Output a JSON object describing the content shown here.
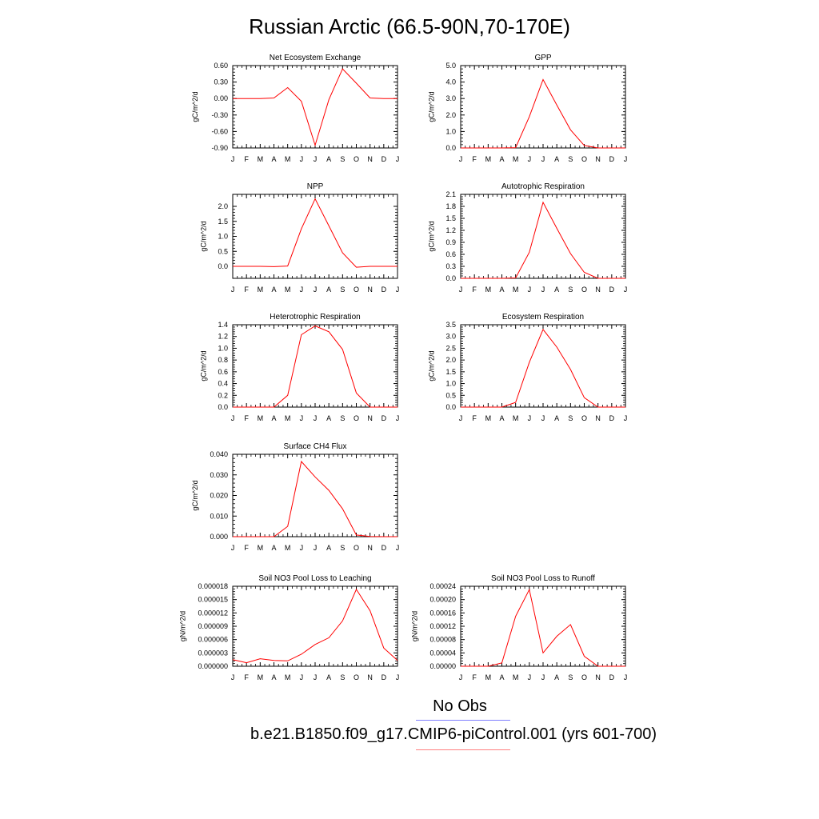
{
  "figure": {
    "title": "Russian Arctic (66.5-90N,70-170E)",
    "legend": {
      "obs_label": "No Obs",
      "obs_color": "#7f7fff",
      "case_label": "b.e21.B1850.f09_g17.CMIP6-piControl.001 (yrs 601-700)",
      "case_color": "#ff7f7f"
    },
    "line_color": "#ff0000"
  },
  "chart_data": [
    {
      "type": "line",
      "title": "Net Ecosystem Exchange",
      "ylabel": "gC/m^2/d",
      "x": [
        "J",
        "F",
        "M",
        "A",
        "M",
        "J",
        "J",
        "A",
        "S",
        "O",
        "N",
        "D",
        "J"
      ],
      "ylim": [
        -0.9,
        0.6
      ],
      "yticks": [
        "0.60",
        "0.30",
        "0.00",
        "-0.30",
        "-0.60",
        "-0.90"
      ],
      "yticks_values": [
        0.6,
        0.3,
        0.0,
        -0.3,
        -0.6,
        -0.9
      ],
      "values": [
        0.0,
        0.0,
        0.0,
        0.01,
        0.2,
        -0.05,
        -0.85,
        -0.02,
        0.54,
        0.28,
        0.01,
        0.0,
        0.0
      ]
    },
    {
      "type": "line",
      "title": "GPP",
      "ylabel": "gC/m^2/d",
      "x": [
        "J",
        "F",
        "M",
        "A",
        "M",
        "J",
        "J",
        "A",
        "S",
        "O",
        "N",
        "D",
        "J"
      ],
      "ylim": [
        0.0,
        5.0
      ],
      "yticks": [
        "5.0",
        "4.0",
        "3.0",
        "2.0",
        "1.0",
        "0.0"
      ],
      "yticks_values": [
        5,
        4,
        3,
        2,
        1,
        0
      ],
      "values": [
        0.0,
        0.0,
        0.0,
        0.0,
        0.02,
        1.9,
        4.15,
        2.6,
        1.1,
        0.15,
        0.0,
        0.0,
        0.0
      ]
    },
    {
      "type": "line",
      "title": "NPP",
      "ylabel": "gC/m^2/d",
      "x": [
        "J",
        "F",
        "M",
        "A",
        "M",
        "J",
        "J",
        "A",
        "S",
        "O",
        "N",
        "D",
        "J"
      ],
      "ylim": [
        -0.4,
        2.4
      ],
      "yticks": [
        "2.0",
        "1.5",
        "1.0",
        "0.5",
        "0.0"
      ],
      "yticks_values": [
        2.0,
        1.5,
        1.0,
        0.5,
        0.0
      ],
      "values": [
        0.0,
        0.0,
        0.0,
        -0.01,
        0.01,
        1.25,
        2.25,
        1.35,
        0.45,
        -0.03,
        0.0,
        0.0,
        0.0
      ]
    },
    {
      "type": "line",
      "title": "Autotrophic Respiration",
      "ylabel": "gC/m^2/d",
      "x": [
        "J",
        "F",
        "M",
        "A",
        "M",
        "J",
        "J",
        "A",
        "S",
        "O",
        "N",
        "D",
        "J"
      ],
      "ylim": [
        0.0,
        2.1
      ],
      "yticks": [
        "2.1",
        "1.8",
        "1.5",
        "1.2",
        "0.9",
        "0.6",
        "0.3",
        "0.0"
      ],
      "yticks_values": [
        2.1,
        1.8,
        1.5,
        1.2,
        0.9,
        0.6,
        0.3,
        0.0
      ],
      "values": [
        0.0,
        0.0,
        0.0,
        0.0,
        0.01,
        0.65,
        1.9,
        1.25,
        0.62,
        0.15,
        0.0,
        0.0,
        0.0
      ]
    },
    {
      "type": "line",
      "title": "Heterotrophic Respiration",
      "ylabel": "gC/m^2/d",
      "x": [
        "J",
        "F",
        "M",
        "A",
        "M",
        "J",
        "J",
        "A",
        "S",
        "O",
        "N",
        "D",
        "J"
      ],
      "ylim": [
        0.0,
        1.4
      ],
      "yticks": [
        "1.4",
        "1.2",
        "1.0",
        "0.8",
        "0.6",
        "0.4",
        "0.2",
        "0.0"
      ],
      "yticks_values": [
        1.4,
        1.2,
        1.0,
        0.8,
        0.6,
        0.4,
        0.2,
        0.0
      ],
      "values": [
        0.0,
        0.0,
        0.0,
        0.0,
        0.2,
        1.23,
        1.38,
        1.28,
        0.98,
        0.24,
        0.0,
        0.0,
        0.0
      ]
    },
    {
      "type": "line",
      "title": "Ecosystem Respiration",
      "ylabel": "gC/m^2/d",
      "x": [
        "J",
        "F",
        "M",
        "A",
        "M",
        "J",
        "J",
        "A",
        "S",
        "O",
        "N",
        "D",
        "J"
      ],
      "ylim": [
        0.0,
        3.5
      ],
      "yticks": [
        "3.5",
        "3.0",
        "2.5",
        "2.0",
        "1.5",
        "1.0",
        "0.5",
        "0.0"
      ],
      "yticks_values": [
        3.5,
        3.0,
        2.5,
        2.0,
        1.5,
        1.0,
        0.5,
        0.0
      ],
      "values": [
        0.0,
        0.0,
        0.0,
        0.0,
        0.2,
        1.9,
        3.3,
        2.55,
        1.6,
        0.4,
        0.0,
        0.0,
        0.0
      ]
    },
    {
      "type": "line",
      "title": "Surface CH4 Flux",
      "ylabel": "gC/m^2/d",
      "x": [
        "J",
        "F",
        "M",
        "A",
        "M",
        "J",
        "J",
        "A",
        "S",
        "O",
        "N",
        "D",
        "J"
      ],
      "ylim": [
        0.0,
        0.04
      ],
      "yticks": [
        "0.040",
        "0.030",
        "0.020",
        "0.010",
        "0.000"
      ],
      "yticks_values": [
        0.04,
        0.03,
        0.02,
        0.01,
        0.0
      ],
      "values": [
        0.0,
        0.0,
        0.0,
        0.0,
        0.005,
        0.0365,
        0.029,
        0.0225,
        0.0135,
        0.0008,
        0.0001,
        0.0,
        0.0
      ]
    },
    {
      "type": "line",
      "title": "Soil NO3 Pool Loss to Leaching",
      "ylabel": "gN/m^2/d",
      "x": [
        "J",
        "F",
        "M",
        "A",
        "M",
        "J",
        "J",
        "A",
        "S",
        "O",
        "N",
        "D",
        "J"
      ],
      "ylim": [
        0.0,
        1.8e-05
      ],
      "yticks": [
        "0.000018",
        "0.000015",
        "0.000012",
        "0.000009",
        "0.000006",
        "0.000003",
        "0.000000"
      ],
      "yticks_values": [
        1.8e-05,
        1.5e-05,
        1.2e-05,
        9e-06,
        6e-06,
        3e-06,
        0.0
      ],
      "values": [
        1.5e-06,
        8e-07,
        1.7e-06,
        1.3e-06,
        1.2e-06,
        2.7e-06,
        4.9e-06,
        6.4e-06,
        1.02e-05,
        1.73e-05,
        1.25e-05,
        4.1e-06,
        1.3e-06
      ]
    },
    {
      "type": "line",
      "title": "Soil NO3 Pool Loss to Runoff",
      "ylabel": "gN/m^2/d",
      "x": [
        "J",
        "F",
        "M",
        "A",
        "M",
        "J",
        "J",
        "A",
        "S",
        "O",
        "N",
        "D",
        "J"
      ],
      "ylim": [
        0.0,
        0.00024
      ],
      "yticks": [
        "0.00024",
        "0.00020",
        "0.00016",
        "0.00012",
        "0.00008",
        "0.00004",
        "0.00000"
      ],
      "yticks_values": [
        0.00024,
        0.0002,
        0.00016,
        0.00012,
        8e-05,
        4e-05,
        0.0
      ],
      "values": [
        0.0,
        0.0,
        0.0,
        1e-05,
        0.00015,
        0.00023,
        4e-05,
        9e-05,
        0.000125,
        3e-05,
        0.0,
        0.0,
        0.0
      ]
    }
  ]
}
